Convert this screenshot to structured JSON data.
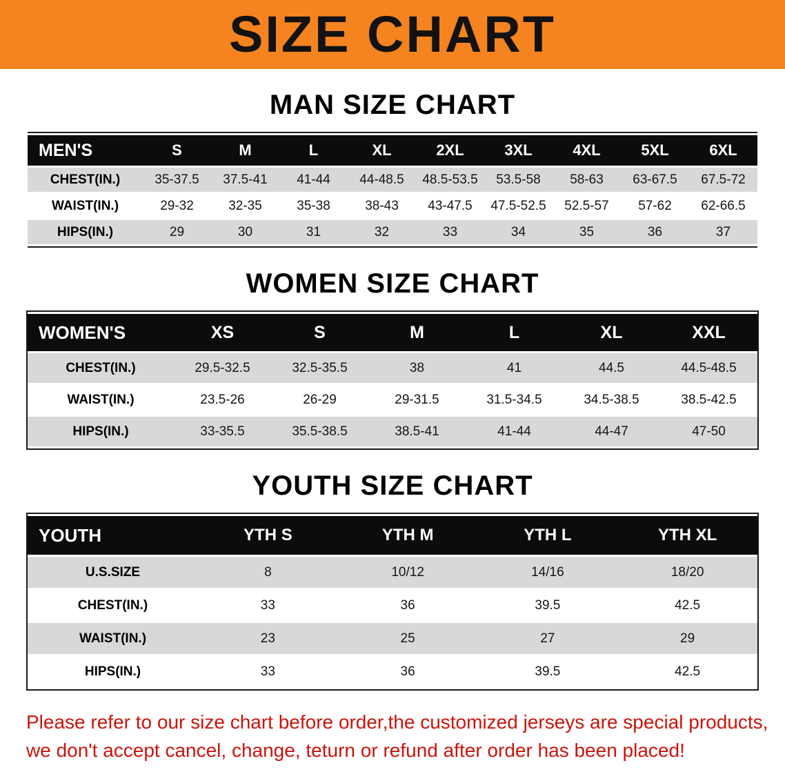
{
  "banner": {
    "title": "SIZE CHART"
  },
  "headings": {
    "men": "MAN SIZE CHART",
    "women": "WOMEN SIZE CHART",
    "youth": "YOUTH SIZE CHART"
  },
  "tables": [
    {
      "id": "men",
      "label": "MEN'S",
      "columns": [
        "S",
        "M",
        "L",
        "XL",
        "2XL",
        "3XL",
        "4XL",
        "5XL",
        "6XL"
      ],
      "rows": [
        {
          "label": "CHEST(IN.)",
          "values": [
            "35-37.5",
            "37.5-41",
            "41-44",
            "44-48.5",
            "48.5-53.5",
            "53.5-58",
            "58-63",
            "63-67.5",
            "67.5-72"
          ]
        },
        {
          "label": "WAIST(IN.)",
          "values": [
            "29-32",
            "32-35",
            "35-38",
            "38-43",
            "43-47.5",
            "47.5-52.5",
            "52.5-57",
            "57-62",
            "62-66.5"
          ]
        },
        {
          "label": "HIPS(IN.)",
          "values": [
            "29",
            "30",
            "31",
            "32",
            "33",
            "34",
            "35",
            "36",
            "37"
          ]
        }
      ]
    },
    {
      "id": "women",
      "label": "WOMEN'S",
      "columns": [
        "XS",
        "S",
        "M",
        "L",
        "XL",
        "XXL"
      ],
      "rows": [
        {
          "label": "CHEST(IN.)",
          "values": [
            "29.5-32.5",
            "32.5-35.5",
            "38",
            "41",
            "44.5",
            "44.5-48.5"
          ]
        },
        {
          "label": "WAIST(IN.)",
          "values": [
            "23.5-26",
            "26-29",
            "29-31.5",
            "31.5-34.5",
            "34.5-38.5",
            "38.5-42.5"
          ]
        },
        {
          "label": "HIPS(IN.)",
          "values": [
            "33-35.5",
            "35.5-38.5",
            "38.5-41",
            "41-44",
            "44-47",
            "47-50"
          ]
        }
      ]
    },
    {
      "id": "youth",
      "label": "YOUTH",
      "columns": [
        "YTH S",
        "YTH M",
        "YTH L",
        "YTH XL"
      ],
      "rows": [
        {
          "label": "U.S.SIZE",
          "values": [
            "8",
            "10/12",
            "14/16",
            "18/20"
          ]
        },
        {
          "label": "CHEST(IN.)",
          "values": [
            "33",
            "36",
            "39.5",
            "42.5"
          ]
        },
        {
          "label": "WAIST(IN.)",
          "values": [
            "23",
            "25",
            "27",
            "29"
          ]
        },
        {
          "label": "HIPS(IN.)",
          "values": [
            "33",
            "36",
            "39.5",
            "42.5"
          ]
        }
      ]
    }
  ],
  "footer": {
    "line1": "Please refer to our size chart before order,the customized jerseys are special products,",
    "line2": "we don't accept cancel, change, teturn or refund after order has been placed!"
  },
  "colors": {
    "orange": "#f5831f",
    "header-bg": "#0c0c0c",
    "stripe": "#d8d8d8",
    "footer-red": "#c9150c"
  }
}
